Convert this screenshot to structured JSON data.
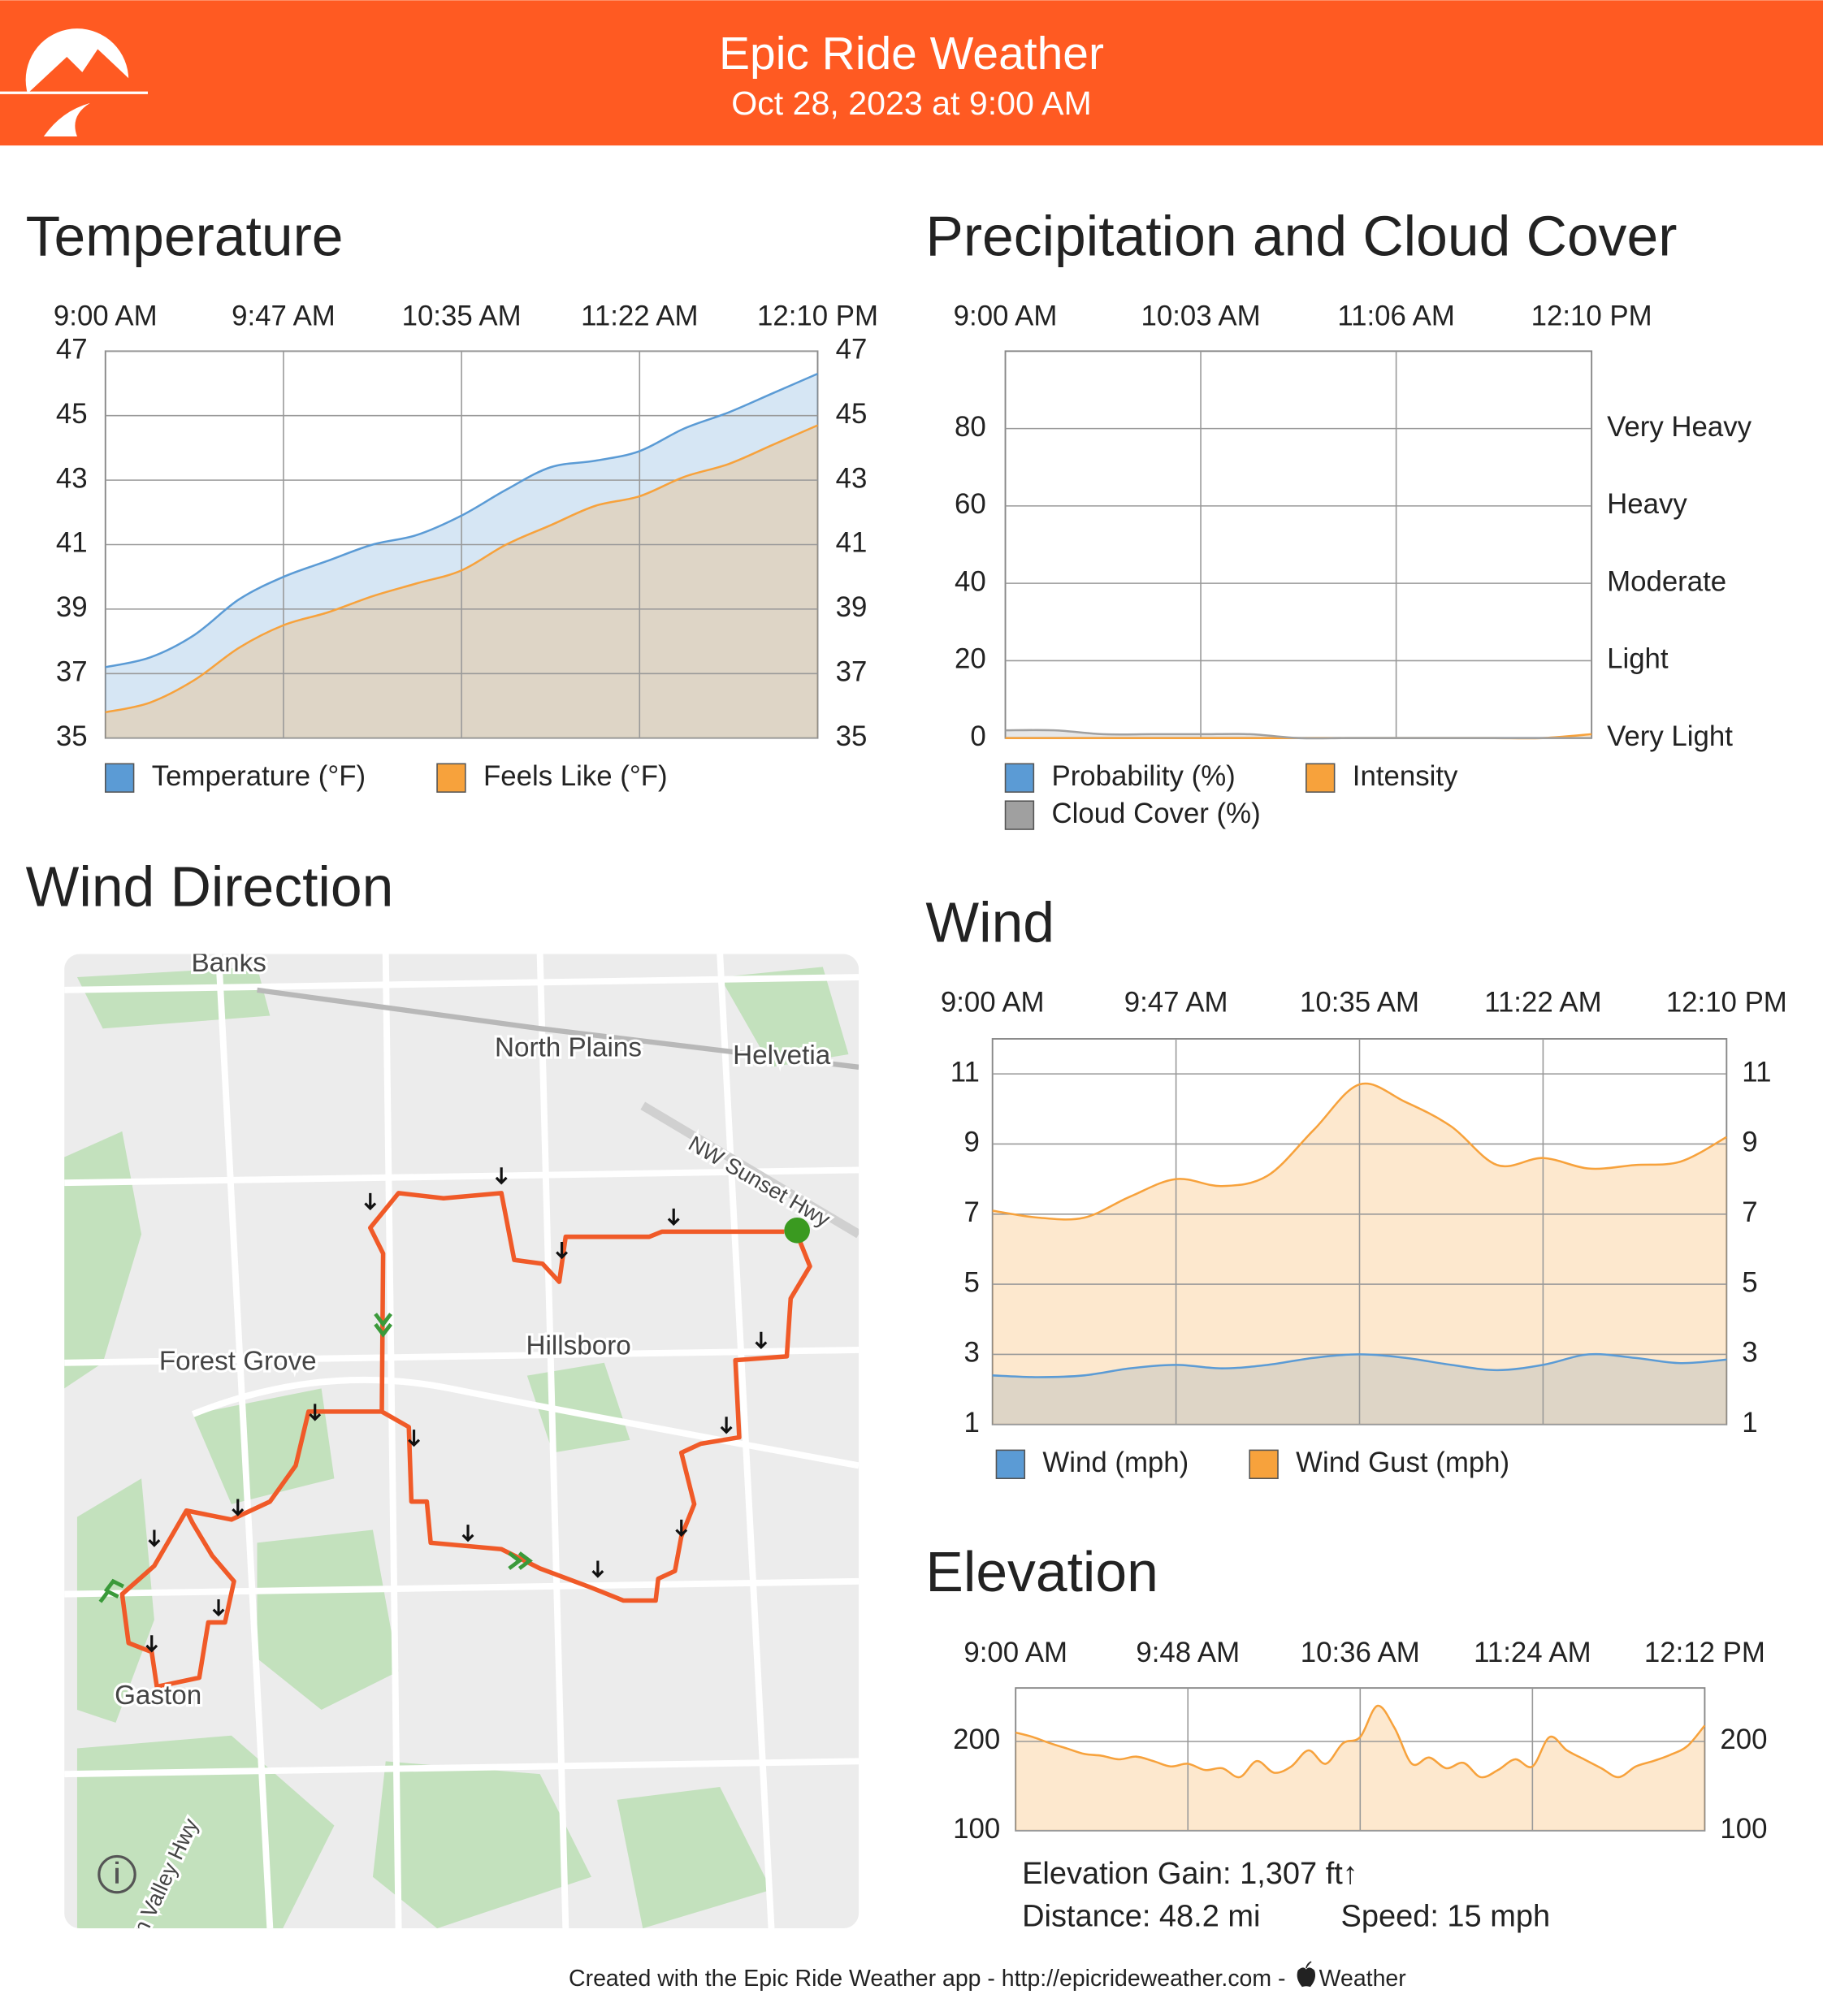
{
  "header": {
    "title": "Epic Ride Weather",
    "subtitle": "Oct 28, 2023 at 9:00 AM"
  },
  "chart_data": [
    {
      "type": "area",
      "title": "Temperature",
      "categories": [
        "9:00 AM",
        null,
        null,
        null,
        "9:47 AM",
        null,
        null,
        null,
        "10:35 AM",
        null,
        null,
        null,
        "11:22 AM",
        null,
        null,
        null,
        "12:10 PM"
      ],
      "series": [
        {
          "name": "Temperature (°F)",
          "color": "#5b9bd5",
          "values": [
            37.2,
            37.5,
            38.2,
            39.3,
            40.0,
            40.5,
            41.0,
            41.3,
            41.9,
            42.7,
            43.4,
            43.6,
            43.9,
            44.6,
            45.1,
            45.7,
            46.3
          ]
        },
        {
          "name": "Feels Like (°F)",
          "color": "#f7a23c",
          "values": [
            35.8,
            36.1,
            36.8,
            37.8,
            38.5,
            38.9,
            39.4,
            39.8,
            40.2,
            41.0,
            41.6,
            42.2,
            42.5,
            43.1,
            43.5,
            44.1,
            44.7
          ]
        }
      ],
      "ylim": [
        35,
        47
      ],
      "yticks": [
        35,
        37,
        39,
        41,
        43,
        45,
        47
      ],
      "y2lim": [
        35,
        47
      ],
      "y2ticks": [
        35,
        37,
        39,
        41,
        43,
        45,
        47
      ],
      "grid": true
    },
    {
      "type": "area",
      "title": "Precipitation and Cloud Cover",
      "categories": [
        "9:00 AM",
        null,
        null,
        null,
        "10:03 AM",
        null,
        null,
        null,
        "11:06 AM",
        null,
        null,
        null,
        "12:10 PM"
      ],
      "series": [
        {
          "name": "Probability (%)",
          "color": "#5b9bd5",
          "values": [
            0,
            0,
            0,
            0,
            0,
            0,
            0,
            0,
            0,
            0,
            0,
            0,
            0
          ]
        },
        {
          "name": "Intensity",
          "color": "#f7a23c",
          "axis": "y2",
          "values": [
            0,
            0,
            0,
            0,
            0,
            0,
            0,
            0,
            0,
            0,
            0,
            0,
            1
          ]
        },
        {
          "name": "Cloud Cover (%)",
          "color": "#a0a0a0",
          "values": [
            2,
            2,
            1,
            1,
            1,
            1,
            0,
            0,
            0,
            0,
            0,
            0,
            0
          ]
        }
      ],
      "ylim": [
        0,
        100
      ],
      "yticks": [
        0,
        20,
        40,
        60,
        80
      ],
      "y2lim": [
        0,
        100
      ],
      "y2ticks": [
        {
          "value": 0,
          "label": "Very Light"
        },
        {
          "value": 20,
          "label": "Light"
        },
        {
          "value": 40,
          "label": "Moderate"
        },
        {
          "value": 60,
          "label": "Heavy"
        },
        {
          "value": 80,
          "label": "Very Heavy"
        }
      ],
      "grid": true
    },
    {
      "type": "area",
      "title": "Wind",
      "categories": [
        "9:00 AM",
        null,
        null,
        null,
        "9:47 AM",
        null,
        null,
        null,
        "10:35 AM",
        null,
        null,
        null,
        "11:22 AM",
        null,
        null,
        null,
        "12:10 PM"
      ],
      "series": [
        {
          "name": "Wind (mph)",
          "color": "#5b9bd5",
          "values": [
            2.4,
            2.35,
            2.4,
            2.6,
            2.7,
            2.6,
            2.7,
            2.9,
            3.0,
            2.9,
            2.7,
            2.55,
            2.7,
            3.0,
            2.9,
            2.75,
            2.85
          ]
        },
        {
          "name": "Wind Gust (mph)",
          "color": "#f7a23c",
          "values": [
            7.1,
            6.9,
            6.9,
            7.5,
            8.0,
            7.8,
            8.1,
            9.4,
            10.7,
            10.2,
            9.5,
            8.4,
            8.6,
            8.3,
            8.4,
            8.5,
            9.2
          ]
        }
      ],
      "ylim": [
        1,
        12
      ],
      "yticks": [
        1,
        3,
        5,
        7,
        9,
        11
      ],
      "y2lim": [
        1,
        12
      ],
      "y2ticks": [
        1,
        3,
        5,
        7,
        9,
        11
      ],
      "grid": true
    },
    {
      "type": "area",
      "title": "Elevation",
      "categories": [
        "9:00 AM",
        null,
        null,
        null,
        null,
        null,
        null,
        null,
        null,
        null,
        "9:48 AM",
        null,
        null,
        null,
        null,
        null,
        null,
        null,
        null,
        null,
        "10:36 AM",
        null,
        null,
        null,
        null,
        null,
        null,
        null,
        null,
        null,
        "11:24 AM",
        null,
        null,
        null,
        null,
        null,
        null,
        null,
        null,
        null,
        "12:12 PM"
      ],
      "series": [
        {
          "color": "#f7a23c",
          "values": [
            210,
            205,
            198,
            192,
            186,
            184,
            180,
            183,
            178,
            172,
            175,
            168,
            170,
            160,
            178,
            165,
            172,
            190,
            175,
            198,
            205,
            240,
            215,
            175,
            182,
            170,
            176,
            160,
            168,
            180,
            172,
            205,
            190,
            180,
            170,
            160,
            172,
            178,
            185,
            195,
            218
          ]
        }
      ],
      "ylim": [
        100,
        260
      ],
      "yticks": [
        100,
        200
      ],
      "y2lim": [
        100,
        260
      ],
      "y2ticks": [
        100,
        200
      ],
      "grid": true
    }
  ],
  "map": {
    "title": "Wind Direction",
    "labels": [
      "Banks",
      "North Plains",
      "Helvetia",
      "NW Sunset Hwy",
      "Forest Grove",
      "Hillsboro",
      "Gaston",
      "n Valley Hwy"
    ]
  },
  "stats": {
    "gain": "Elevation Gain: 1,307 ft↑",
    "distance": "Distance: 48.2 mi",
    "speed": "Speed: 15 mph"
  },
  "footer": {
    "text": "Created with the Epic Ride Weather app - http://epicrideweather.com -",
    "source": "Weather"
  }
}
